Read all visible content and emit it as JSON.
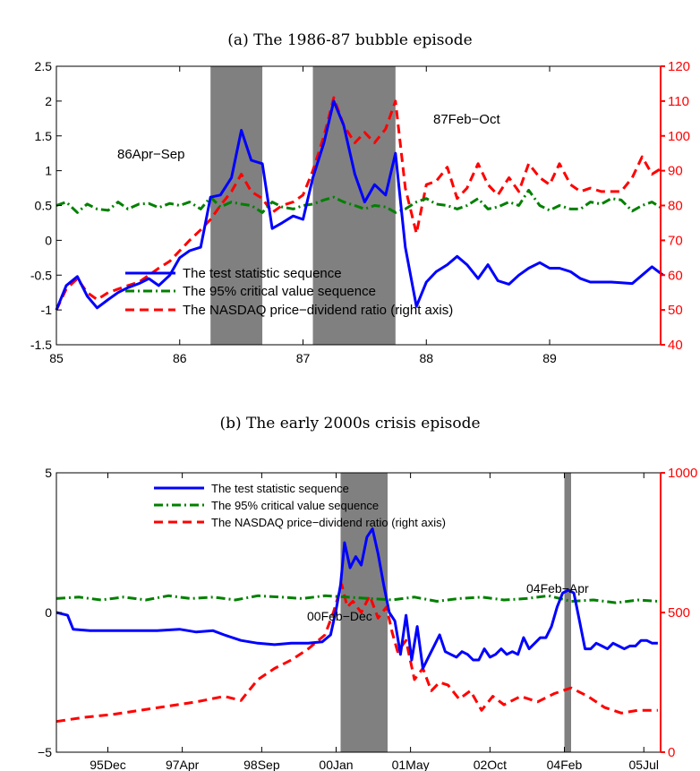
{
  "chart_data": [
    {
      "type": "line",
      "title": "(a) The 1986-87 bubble episode",
      "x_ticks": [
        "85",
        "86",
        "87",
        "88",
        "89"
      ],
      "x_tick_values": [
        85,
        86,
        87,
        88,
        89
      ],
      "xlim": [
        85,
        89.9
      ],
      "ylim_left": [
        -1.5,
        2.5
      ],
      "y_ticks_left": [
        "-1.5",
        "-1",
        "-0.5",
        "0",
        "0.5",
        "1",
        "1.5",
        "2",
        "2.5"
      ],
      "ylim_right": [
        40,
        120
      ],
      "y_ticks_right": [
        "40",
        "50",
        "60",
        "70",
        "80",
        "90",
        "100",
        "110",
        "120"
      ],
      "shaded_periods": [
        [
          86.25,
          86.67
        ],
        [
          87.08,
          87.75
        ]
      ],
      "annotations": [
        {
          "text": "86Apr−Sep",
          "x": 85.35,
          "y": 1.2
        },
        {
          "text": "87Feb−Oct",
          "x": 87.95,
          "y": 1.75
        }
      ],
      "legend_position": "lower-left",
      "series": [
        {
          "name": "The test statistic sequence",
          "axis": "left",
          "color": "#0000ff",
          "style": "solid",
          "x": [
            85.0,
            85.08,
            85.17,
            85.25,
            85.33,
            85.42,
            85.5,
            85.58,
            85.67,
            85.75,
            85.83,
            85.92,
            86.0,
            86.08,
            86.17,
            86.25,
            86.33,
            86.42,
            86.5,
            86.58,
            86.67,
            86.75,
            86.83,
            86.92,
            87.0,
            87.08,
            87.17,
            87.25,
            87.33,
            87.42,
            87.5,
            87.58,
            87.67,
            87.75,
            87.83,
            87.92,
            88.0,
            88.08,
            88.17,
            88.25,
            88.33,
            88.42,
            88.5,
            88.58,
            88.67,
            88.75,
            88.83,
            88.92,
            89.0,
            89.08,
            89.17,
            89.25,
            89.33,
            89.42,
            89.5,
            89.58,
            89.67,
            89.75,
            89.83,
            89.92
          ],
          "y": [
            -1.0,
            -0.65,
            -0.52,
            -0.8,
            -0.97,
            -0.85,
            -0.75,
            -0.68,
            -0.62,
            -0.55,
            -0.65,
            -0.5,
            -0.25,
            -0.15,
            -0.1,
            0.62,
            0.65,
            0.9,
            1.58,
            1.15,
            1.1,
            0.17,
            0.25,
            0.35,
            0.3,
            0.9,
            1.4,
            2.0,
            1.65,
            0.95,
            0.55,
            0.8,
            0.65,
            1.25,
            -0.1,
            -0.95,
            -0.6,
            -0.45,
            -0.35,
            -0.23,
            -0.35,
            -0.55,
            -0.35,
            -0.58,
            -0.63,
            -0.5,
            -0.4,
            -0.32,
            -0.4,
            -0.4,
            -0.45,
            -0.55,
            -0.6,
            -0.6,
            -0.6,
            -0.61,
            -0.62,
            -0.5,
            -0.38,
            -0.5
          ]
        },
        {
          "name": "The 95% critical value sequence",
          "axis": "left",
          "color": "#008000",
          "style": "dash-dot",
          "x": [
            85.0,
            85.08,
            85.17,
            85.25,
            85.33,
            85.42,
            85.5,
            85.58,
            85.67,
            85.75,
            85.83,
            85.92,
            86.0,
            86.08,
            86.17,
            86.25,
            86.33,
            86.42,
            86.5,
            86.58,
            86.67,
            86.75,
            86.83,
            86.92,
            87.0,
            87.08,
            87.17,
            87.25,
            87.33,
            87.42,
            87.5,
            87.58,
            87.67,
            87.75,
            87.83,
            87.92,
            88.0,
            88.08,
            88.17,
            88.25,
            88.33,
            88.42,
            88.5,
            88.58,
            88.67,
            88.75,
            88.83,
            88.92,
            89.0,
            89.08,
            89.17,
            89.25,
            89.33,
            89.42,
            89.5,
            89.58,
            89.67,
            89.75,
            89.83,
            89.92
          ],
          "y": [
            0.5,
            0.55,
            0.4,
            0.52,
            0.45,
            0.43,
            0.55,
            0.45,
            0.52,
            0.53,
            0.47,
            0.53,
            0.5,
            0.55,
            0.45,
            0.62,
            0.48,
            0.55,
            0.52,
            0.5,
            0.4,
            0.55,
            0.48,
            0.45,
            0.5,
            0.52,
            0.58,
            0.62,
            0.55,
            0.5,
            0.45,
            0.5,
            0.48,
            0.4,
            0.45,
            0.55,
            0.6,
            0.52,
            0.5,
            0.45,
            0.5,
            0.6,
            0.45,
            0.48,
            0.55,
            0.5,
            0.72,
            0.5,
            0.43,
            0.5,
            0.45,
            0.45,
            0.55,
            0.52,
            0.6,
            0.58,
            0.42,
            0.5,
            0.55,
            0.45
          ]
        },
        {
          "name": "The NASDAQ price−dividend ratio (right axis)",
          "axis": "right",
          "color": "#ff0000",
          "style": "dashed",
          "x": [
            85.0,
            85.08,
            85.17,
            85.25,
            85.33,
            85.42,
            85.5,
            85.58,
            85.67,
            85.75,
            85.83,
            85.92,
            86.0,
            86.08,
            86.17,
            86.25,
            86.33,
            86.42,
            86.5,
            86.58,
            86.67,
            86.75,
            86.83,
            86.92,
            87.0,
            87.08,
            87.17,
            87.25,
            87.33,
            87.42,
            87.5,
            87.58,
            87.67,
            87.75,
            87.83,
            87.92,
            88.0,
            88.08,
            88.17,
            88.25,
            88.33,
            88.42,
            88.5,
            88.58,
            88.67,
            88.75,
            88.83,
            88.92,
            89.0,
            89.08,
            89.17,
            89.25,
            89.33,
            89.42,
            89.5,
            89.58,
            89.67,
            89.75,
            89.83,
            89.92
          ],
          "y": [
            50,
            56,
            59,
            55,
            53,
            55,
            56,
            57,
            58,
            60,
            62,
            64,
            67,
            70,
            73,
            76,
            80,
            84,
            89,
            84,
            82,
            78,
            80,
            81,
            83,
            90,
            100,
            111,
            103,
            98,
            101,
            98,
            102,
            110,
            85,
            72,
            86,
            87,
            91,
            82,
            85,
            92,
            86,
            83,
            88,
            84,
            92,
            88,
            86,
            92,
            86,
            84,
            85,
            84,
            84,
            84,
            88,
            94,
            89,
            91
          ]
        }
      ]
    },
    {
      "type": "line",
      "title": "(b) The early 2000s crisis episode",
      "x_ticks": [
        "95Dec",
        "97Apr",
        "98Sep",
        "00Jan",
        "01May",
        "02Oct",
        "04Feb",
        "05Jul"
      ],
      "x_tick_values": [
        1995.92,
        1997.25,
        1998.67,
        2000.0,
        2001.33,
        2002.75,
        2004.08,
        2005.5
      ],
      "xlim": [
        1995.0,
        2005.8
      ],
      "ylim_left": [
        -5,
        5
      ],
      "y_ticks_left": [
        "−5",
        "0",
        "5"
      ],
      "ylim_right": [
        0,
        1000
      ],
      "y_ticks_right": [
        "0",
        "500",
        "1000"
      ],
      "shaded_periods": [
        [
          2000.08,
          2000.92
        ],
        [
          2004.08,
          2004.2
        ]
      ],
      "annotations": [
        {
          "text": "00Feb−Dec",
          "x": 1999.45,
          "y": -0.3
        },
        {
          "text": "04Feb−Apr",
          "x": 2003.45,
          "y": 0.9
        }
      ],
      "legend_position": "top-center",
      "series": [
        {
          "name": "The test statistic sequence",
          "axis": "left",
          "color": "#0000ff",
          "style": "solid",
          "x": [
            1995.0,
            1995.2,
            1995.3,
            1995.6,
            1996.0,
            1996.4,
            1996.8,
            1997.2,
            1997.5,
            1997.8,
            1998.0,
            1998.3,
            1998.6,
            1998.9,
            1999.2,
            1999.5,
            1999.75,
            1999.9,
            2000.0,
            2000.08,
            2000.15,
            2000.25,
            2000.35,
            2000.45,
            2000.55,
            2000.65,
            2000.75,
            2000.85,
            2000.95,
            2001.05,
            2001.15,
            2001.25,
            2001.35,
            2001.45,
            2001.55,
            2001.65,
            2001.75,
            2001.85,
            2001.95,
            2002.05,
            2002.15,
            2002.25,
            2002.35,
            2002.45,
            2002.55,
            2002.65,
            2002.75,
            2002.85,
            2002.95,
            2003.05,
            2003.15,
            2003.25,
            2003.35,
            2003.45,
            2003.55,
            2003.65,
            2003.75,
            2003.85,
            2003.95,
            2004.05,
            2004.15,
            2004.25,
            2004.35,
            2004.45,
            2004.55,
            2004.65,
            2004.75,
            2004.85,
            2004.95,
            2005.05,
            2005.15,
            2005.25,
            2005.35,
            2005.45,
            2005.55,
            2005.65,
            2005.75
          ],
          "y": [
            0.0,
            -0.1,
            -0.6,
            -0.65,
            -0.65,
            -0.65,
            -0.65,
            -0.6,
            -0.7,
            -0.65,
            -0.8,
            -1.0,
            -1.1,
            -1.15,
            -1.1,
            -1.1,
            -1.05,
            -0.8,
            0.1,
            1.0,
            2.5,
            1.6,
            2.0,
            1.7,
            2.7,
            3.0,
            2.1,
            1.0,
            0.0,
            -0.3,
            -1.5,
            -0.1,
            -1.7,
            -0.5,
            -2.0,
            -1.6,
            -1.2,
            -0.8,
            -1.4,
            -1.5,
            -1.6,
            -1.4,
            -1.5,
            -1.7,
            -1.7,
            -1.3,
            -1.6,
            -1.5,
            -1.3,
            -1.5,
            -1.4,
            -1.5,
            -0.9,
            -1.3,
            -1.1,
            -0.9,
            -0.9,
            -0.5,
            0.2,
            0.7,
            0.8,
            0.7,
            -0.3,
            -1.3,
            -1.3,
            -1.1,
            -1.2,
            -1.3,
            -1.1,
            -1.2,
            -1.3,
            -1.2,
            -1.2,
            -1.0,
            -1.0,
            -1.1,
            -1.1
          ]
        },
        {
          "name": "The 95% critical value sequence",
          "axis": "left",
          "color": "#008000",
          "style": "dash-dot",
          "x": [
            1995.0,
            1995.4,
            1995.8,
            1996.2,
            1996.6,
            1997.0,
            1997.4,
            1997.8,
            1998.2,
            1998.6,
            1999.0,
            1999.4,
            1999.8,
            2000.2,
            2000.6,
            2001.0,
            2001.4,
            2001.8,
            2002.2,
            2002.6,
            2003.0,
            2003.4,
            2003.8,
            2004.2,
            2004.6,
            2005.0,
            2005.4,
            2005.75
          ],
          "y": [
            0.5,
            0.55,
            0.45,
            0.55,
            0.45,
            0.6,
            0.5,
            0.55,
            0.45,
            0.6,
            0.55,
            0.5,
            0.6,
            0.55,
            0.5,
            0.45,
            0.55,
            0.4,
            0.5,
            0.55,
            0.45,
            0.5,
            0.6,
            0.4,
            0.45,
            0.35,
            0.45,
            0.4
          ]
        },
        {
          "name": "The NASDAQ price−dividend ratio (right axis)",
          "axis": "right",
          "color": "#ff0000",
          "style": "dashed",
          "x": [
            1995.0,
            1995.5,
            1996.0,
            1996.5,
            1997.0,
            1997.5,
            1998.0,
            1998.3,
            1998.6,
            1998.9,
            1999.2,
            1999.5,
            1999.8,
            1999.95,
            2000.1,
            2000.2,
            2000.3,
            2000.45,
            2000.6,
            2000.75,
            2000.9,
            2001.0,
            2001.1,
            2001.25,
            2001.4,
            2001.55,
            2001.7,
            2001.85,
            2002.0,
            2002.2,
            2002.4,
            2002.6,
            2002.8,
            2003.0,
            2003.3,
            2003.6,
            2003.9,
            2004.2,
            2004.5,
            2004.8,
            2005.1,
            2005.4,
            2005.75
          ],
          "y": [
            110,
            125,
            135,
            150,
            165,
            180,
            200,
            185,
            260,
            300,
            330,
            370,
            420,
            500,
            600,
            520,
            540,
            500,
            560,
            480,
            520,
            430,
            360,
            400,
            260,
            300,
            220,
            250,
            240,
            190,
            220,
            150,
            200,
            170,
            200,
            180,
            210,
            230,
            200,
            160,
            140,
            150,
            150
          ]
        }
      ]
    }
  ]
}
